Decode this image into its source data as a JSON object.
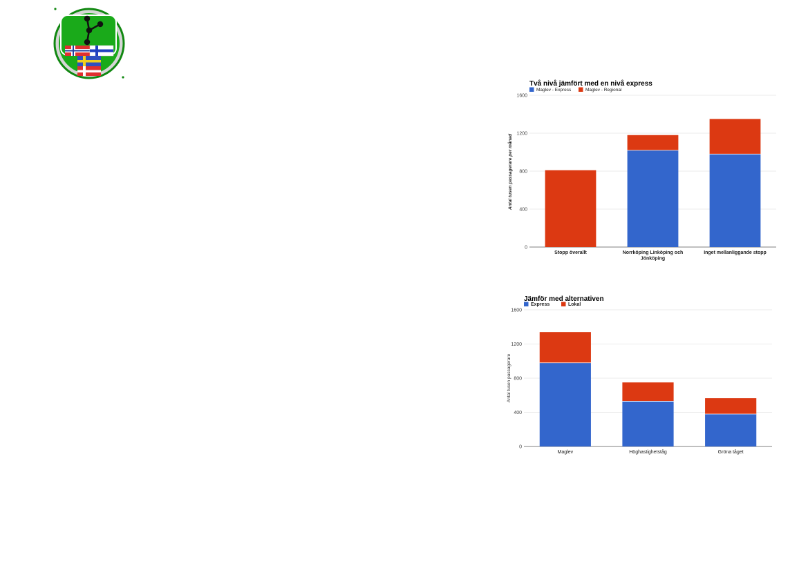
{
  "logo": {
    "colors": {
      "ring": "#118811",
      "field": "#1aaa1a",
      "white": "#ffffff",
      "node": "#111111"
    },
    "flags": [
      "norway-flag",
      "finland-flag",
      "sweden-flag",
      "denmark-flag"
    ]
  },
  "chart_data": [
    {
      "type": "bar",
      "stacked": true,
      "title": "Två nivå jämfört med en nivå express",
      "ylabel": "Antal tusen passagerare per månad",
      "categories": [
        "Stopp överallt",
        "Norrköping Linköping och Jönköping",
        "Inget mellanliggande stopp"
      ],
      "categories_wrapped": [
        [
          "Stopp överallt"
        ],
        [
          "Norrköping Linköping och",
          "Jönköping"
        ],
        [
          "Inget mellanliggande stopp"
        ]
      ],
      "series": [
        {
          "name": "Maglev - Express",
          "color": "#3366cc",
          "values": [
            0,
            1020,
            980
          ]
        },
        {
          "name": "Maglev - Regional",
          "color": "#dc3912",
          "values": [
            810,
            160,
            370
          ]
        }
      ],
      "ylim": [
        0,
        1600
      ],
      "yticks": [
        0,
        400,
        800,
        1200,
        1600
      ],
      "legend": "top-left",
      "grid": true
    },
    {
      "type": "bar",
      "stacked": true,
      "title": "Jämför med alternativen",
      "ylabel": "Antal tusen passagerare",
      "categories": [
        "Maglev",
        "Höghastighetståg",
        "Gröna tåget"
      ],
      "categories_wrapped": [
        [
          "Maglev"
        ],
        [
          "Höghastighetståg"
        ],
        [
          "Gröna tåget"
        ]
      ],
      "series": [
        {
          "name": "Express",
          "color": "#3366cc",
          "values": [
            980,
            530,
            380
          ]
        },
        {
          "name": "Lokal",
          "color": "#dc3912",
          "values": [
            360,
            220,
            185
          ]
        }
      ],
      "ylim": [
        0,
        1600
      ],
      "yticks": [
        0,
        400,
        800,
        1200,
        1600
      ],
      "legend": "top-left",
      "grid": true
    }
  ]
}
